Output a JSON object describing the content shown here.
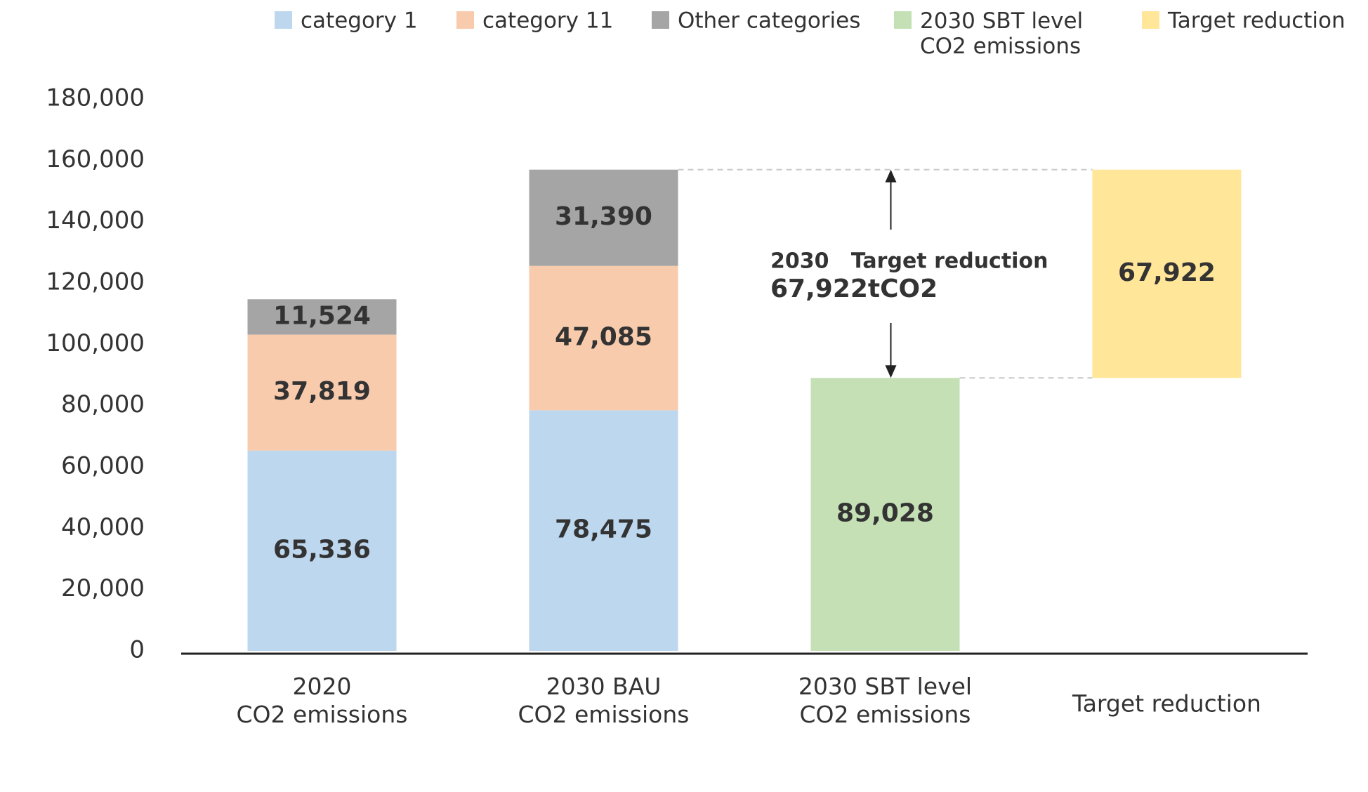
{
  "chart_data": {
    "type": "bar",
    "stacked": true,
    "categories": [
      "2020\nCO2 emissions",
      "2030 BAU\nCO2 emissions",
      "2030 SBT level\nCO2 emissions",
      "Target reduction"
    ],
    "series": [
      {
        "name": "category 1",
        "color": "#bdd7ee",
        "values": [
          65336,
          78475,
          null,
          null
        ],
        "value_labels": [
          "65,336",
          "78,475",
          null,
          null
        ]
      },
      {
        "name": "category 11",
        "color": "#f8cbad",
        "values": [
          37819,
          47085,
          null,
          null
        ],
        "value_labels": [
          "37,819",
          "47,085",
          null,
          null
        ]
      },
      {
        "name": "Other categories",
        "color": "#a5a5a5",
        "values": [
          11524,
          31390,
          null,
          null
        ],
        "value_labels": [
          "11,524",
          "31,390",
          null,
          null
        ]
      },
      {
        "name": "2030 SBT level\nCO2 emissions",
        "color": "#c5e0b4",
        "values": [
          null,
          null,
          89028,
          null
        ],
        "value_labels": [
          null,
          null,
          "89,028",
          null
        ]
      },
      {
        "name": "Target reduction",
        "color": "#ffe699",
        "values": [
          null,
          null,
          null,
          67922
        ],
        "value_labels": [
          null,
          null,
          null,
          "67,922"
        ]
      }
    ],
    "annotation": {
      "title": "2030   Target reduction",
      "text": "67,922tCO2"
    },
    "ylim": [
      0,
      180000
    ],
    "yticks": [
      0,
      {
        "value": 20000,
        "label": "20,000"
      },
      {
        "value": 40000,
        "label": "40,000"
      },
      {
        "value": 60000,
        "label": "60,000"
      },
      {
        "value": 80000,
        "label": "80,000"
      },
      {
        "value": 100000,
        "label": "100,000"
      },
      {
        "value": 120000,
        "label": "120,000"
      },
      {
        "value": 140000,
        "label": "140,000"
      },
      {
        "value": 160000,
        "label": "160,000"
      },
      {
        "value": 180000,
        "label": "180,000"
      }
    ],
    "grid": false,
    "legend": "top"
  }
}
